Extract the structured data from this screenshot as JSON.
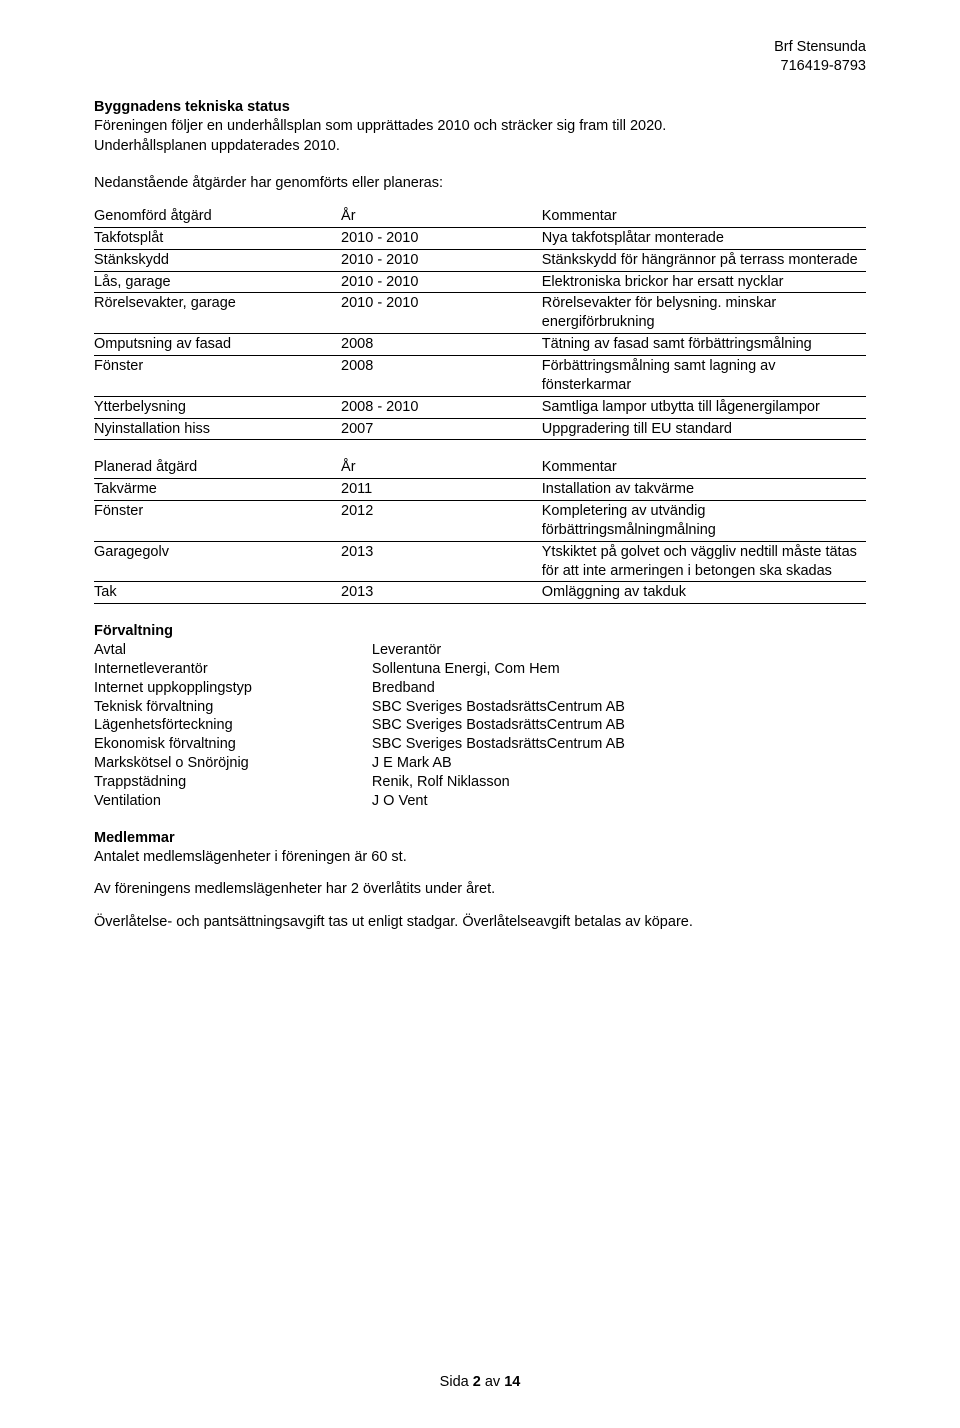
{
  "header": {
    "org_name": "Brf Stensunda",
    "org_no": "716419-8793"
  },
  "tech_status": {
    "title": "Byggnadens tekniska status",
    "intro1": "Föreningen följer en underhållsplan som upprättades 2010 och sträcker sig fram till 2020.",
    "intro2": "Underhållsplanen uppdaterades 2010.",
    "subhead": "Nedanstående åtgärder har genomförts eller planeras:"
  },
  "done_table": {
    "head": {
      "a": "Genomförd åtgärd",
      "b": "År",
      "c": "Kommentar"
    },
    "rows": [
      {
        "a": "Takfotsplåt",
        "b": "2010 - 2010",
        "c": "Nya takfotsplåtar monterade"
      },
      {
        "a": "Stänkskydd",
        "b": "2010 - 2010",
        "c": "Stänkskydd för hängrännor på terrass monterade"
      },
      {
        "a": "Lås, garage",
        "b": "2010 - 2010",
        "c": "Elektroniska brickor har ersatt nycklar"
      },
      {
        "a": "Rörelsevakter, garage",
        "b": "2010 - 2010",
        "c": "Rörelsevakter för belysning. minskar energiförbrukning"
      },
      {
        "a": "Omputsning av fasad",
        "b": "2008",
        "c": "Tätning av fasad samt förbättringsmålning"
      },
      {
        "a": "Fönster",
        "b": "2008",
        "c": "Förbättringsmålning samt lagning av fönsterkarmar"
      },
      {
        "a": "Ytterbelysning",
        "b": "2008 - 2010",
        "c": "Samtliga lampor utbytta till lågenergilampor"
      },
      {
        "a": "Nyinstallation hiss",
        "b": "2007",
        "c": "Uppgradering till EU standard"
      }
    ]
  },
  "plan_table": {
    "head": {
      "a": "Planerad åtgärd",
      "b": "År",
      "c": "Kommentar"
    },
    "rows": [
      {
        "a": "Takvärme",
        "b": "2011",
        "c": "Installation av takvärme"
      },
      {
        "a": "Fönster",
        "b": "2012",
        "c": "Kompletering av utvändig förbättringsmålningmålning"
      },
      {
        "a": "Garagegolv",
        "b": "2013",
        "c": "Ytskiktet på golvet och väggliv nedtill måste tätas för att inte armeringen i betongen ska skadas"
      },
      {
        "a": "Tak",
        "b": "2013",
        "c": "Omläggning av takduk"
      }
    ]
  },
  "forvaltning": {
    "title": "Förvaltning",
    "head": {
      "a": "Avtal",
      "b": "Leverantör"
    },
    "rows": [
      {
        "a": "Internetleverantör",
        "b": "Sollentuna Energi, Com Hem"
      },
      {
        "a": "Internet uppkopplingstyp",
        "b": "Bredband"
      },
      {
        "a": "Teknisk förvaltning",
        "b": "SBC Sveriges BostadsrättsCentrum AB"
      },
      {
        "a": "Lägenhetsförteckning",
        "b": "SBC Sveriges BostadsrättsCentrum AB"
      },
      {
        "a": "Ekonomisk förvaltning",
        "b": "SBC Sveriges BostadsrättsCentrum AB"
      },
      {
        "a": "Markskötsel o Snöröjnig",
        "b": "J E Mark AB"
      },
      {
        "a": "Trappstädning",
        "b": "Renik, Rolf Niklasson"
      },
      {
        "a": "Ventilation",
        "b": "J O Vent"
      }
    ]
  },
  "medlemmar": {
    "title": "Medlemmar",
    "p1": "Antalet medlemslägenheter i föreningen är 60 st.",
    "p2": "Av föreningens medlemslägenheter har 2 överlåtits under året.",
    "p3": "Överlåtelse- och pantsättningsavgift tas ut enligt stadgar. Överlåtelseavgift betalas av köpare."
  },
  "footer": {
    "prefix": "Sida ",
    "page": "2",
    "mid": " av ",
    "total": "14"
  }
}
